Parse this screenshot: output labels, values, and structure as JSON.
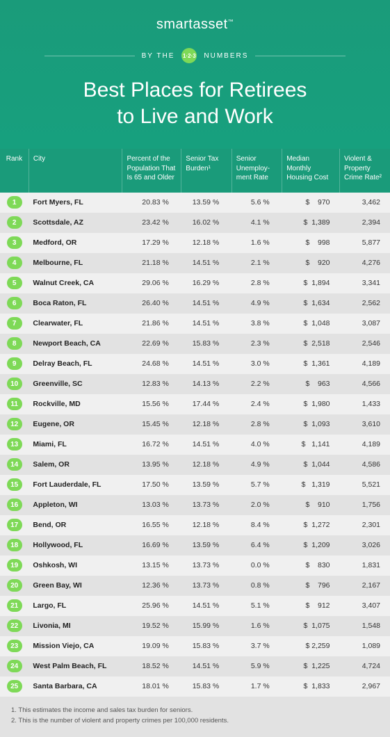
{
  "brand": {
    "part1": "smart",
    "part2": "asset",
    "tm": "™"
  },
  "tagline": {
    "left": "BY THE",
    "badge": "1·2·3",
    "right": "NUMBERS"
  },
  "title": {
    "line1": "Best Places for Retirees",
    "line2": "to Live and Work"
  },
  "columns": {
    "rank": "Rank",
    "city": "City",
    "pct65": "Percent of the Population That Is 65 and Older",
    "tax": "Senior Tax Burden¹",
    "unemp": "Senior Unemploy-ment Rate",
    "cost": "Median Monthly Housing Cost",
    "crime": "Violent & Property Crime Rate²"
  },
  "rows": [
    {
      "rank": "1",
      "city": "Fort Myers, FL",
      "pct65": "20.83 %",
      "tax": "13.59 %",
      "unemp": "5.6 %",
      "cost": "$    970",
      "crime": "3,462"
    },
    {
      "rank": "2",
      "city": "Scottsdale, AZ",
      "pct65": "23.42 %",
      "tax": "16.02 %",
      "unemp": "4.1 %",
      "cost": "$  1,389",
      "crime": "2,394"
    },
    {
      "rank": "3",
      "city": "Medford, OR",
      "pct65": "17.29 %",
      "tax": "12.18 %",
      "unemp": "1.6 %",
      "cost": "$    998",
      "crime": "5,877"
    },
    {
      "rank": "4",
      "city": "Melbourne, FL",
      "pct65": "21.18 %",
      "tax": "14.51 %",
      "unemp": "2.1 %",
      "cost": "$    920",
      "crime": "4,276"
    },
    {
      "rank": "5",
      "city": "Walnut Creek, CA",
      "pct65": "29.06 %",
      "tax": "16.29 %",
      "unemp": "2.8 %",
      "cost": "$  1,894",
      "crime": "3,341"
    },
    {
      "rank": "6",
      "city": "Boca Raton, FL",
      "pct65": "26.40 %",
      "tax": "14.51 %",
      "unemp": "4.9 %",
      "cost": "$  1,634",
      "crime": "2,562"
    },
    {
      "rank": "7",
      "city": "Clearwater, FL",
      "pct65": "21.86 %",
      "tax": "14.51 %",
      "unemp": "3.8 %",
      "cost": "$  1,048",
      "crime": "3,087"
    },
    {
      "rank": "8",
      "city": "Newport Beach, CA",
      "pct65": "22.69 %",
      "tax": "15.83 %",
      "unemp": "2.3 %",
      "cost": "$  2,518",
      "crime": "2,546"
    },
    {
      "rank": "9",
      "city": "Delray Beach, FL",
      "pct65": "24.68 %",
      "tax": "14.51 %",
      "unemp": "3.0 %",
      "cost": "$  1,361",
      "crime": "4,189"
    },
    {
      "rank": "10",
      "city": "Greenville, SC",
      "pct65": "12.83 %",
      "tax": "14.13 %",
      "unemp": "2.2 %",
      "cost": "$    963",
      "crime": "4,566"
    },
    {
      "rank": "11",
      "city": "Rockville, MD",
      "pct65": "15.56 %",
      "tax": "17.44 %",
      "unemp": "2.4 %",
      "cost": "$  1,980",
      "crime": "1,433"
    },
    {
      "rank": "12",
      "city": "Eugene, OR",
      "pct65": "15.45 %",
      "tax": "12.18 %",
      "unemp": "2.8 %",
      "cost": "$  1,093",
      "crime": "3,610"
    },
    {
      "rank": "13",
      "city": "Miami, FL",
      "pct65": "16.72 %",
      "tax": "14.51 %",
      "unemp": "4.0 %",
      "cost": "$   1,141",
      "crime": "4,189"
    },
    {
      "rank": "14",
      "city": "Salem, OR",
      "pct65": "13.95 %",
      "tax": "12.18 %",
      "unemp": "4.9 %",
      "cost": "$  1,044",
      "crime": "4,586"
    },
    {
      "rank": "15",
      "city": "Fort Lauderdale, FL",
      "pct65": "17.50 %",
      "tax": "13.59 %",
      "unemp": "5.7 %",
      "cost": "$   1,319",
      "crime": "5,521"
    },
    {
      "rank": "16",
      "city": "Appleton, WI",
      "pct65": "13.03 %",
      "tax": "13.73 %",
      "unemp": "2.0 %",
      "cost": "$    910",
      "crime": "1,756"
    },
    {
      "rank": "17",
      "city": "Bend, OR",
      "pct65": "16.55 %",
      "tax": "12.18 %",
      "unemp": "8.4 %",
      "cost": "$  1,272",
      "crime": "2,301"
    },
    {
      "rank": "18",
      "city": "Hollywood, FL",
      "pct65": "16.69 %",
      "tax": "13.59 %",
      "unemp": "6.4 %",
      "cost": "$  1,209",
      "crime": "3,026"
    },
    {
      "rank": "19",
      "city": "Oshkosh, WI",
      "pct65": "13.15 %",
      "tax": "13.73 %",
      "unemp": "0.0 %",
      "cost": "$    830",
      "crime": "1,831"
    },
    {
      "rank": "20",
      "city": "Green Bay, WI",
      "pct65": "12.36 %",
      "tax": "13.73 %",
      "unemp": "0.8 %",
      "cost": "$    796",
      "crime": "2,167"
    },
    {
      "rank": "21",
      "city": "Largo, FL",
      "pct65": "25.96 %",
      "tax": "14.51 %",
      "unemp": "5.1 %",
      "cost": "$    912",
      "crime": "3,407"
    },
    {
      "rank": "22",
      "city": "Livonia, MI",
      "pct65": "19.52 %",
      "tax": "15.99 %",
      "unemp": "1.6 %",
      "cost": "$  1,075",
      "crime": "1,548"
    },
    {
      "rank": "23",
      "city": "Mission Viejo, CA",
      "pct65": "19.09 %",
      "tax": "15.83 %",
      "unemp": "3.7 %",
      "cost": "$ 2,259",
      "crime": "1,089"
    },
    {
      "rank": "24",
      "city": "West Palm Beach, FL",
      "pct65": "18.52 %",
      "tax": "14.51 %",
      "unemp": "5.9 %",
      "cost": "$  1,225",
      "crime": "4,724"
    },
    {
      "rank": "25",
      "city": "Santa Barbara, CA",
      "pct65": "18.01 %",
      "tax": "15.83 %",
      "unemp": "1.7 %",
      "cost": "$  1,833",
      "crime": "2,967"
    }
  ],
  "footnotes": {
    "f1": "1.  This estimates the income and sales tax burden for seniors.",
    "f2": "2.  This is the number of violent and property crimes per 100,000 residents."
  },
  "colors": {
    "hero_bg": "#1a9b7a",
    "pill_bg": "#7ed957",
    "row_odd": "#f0f0f0",
    "row_even": "#e2e2e2"
  }
}
